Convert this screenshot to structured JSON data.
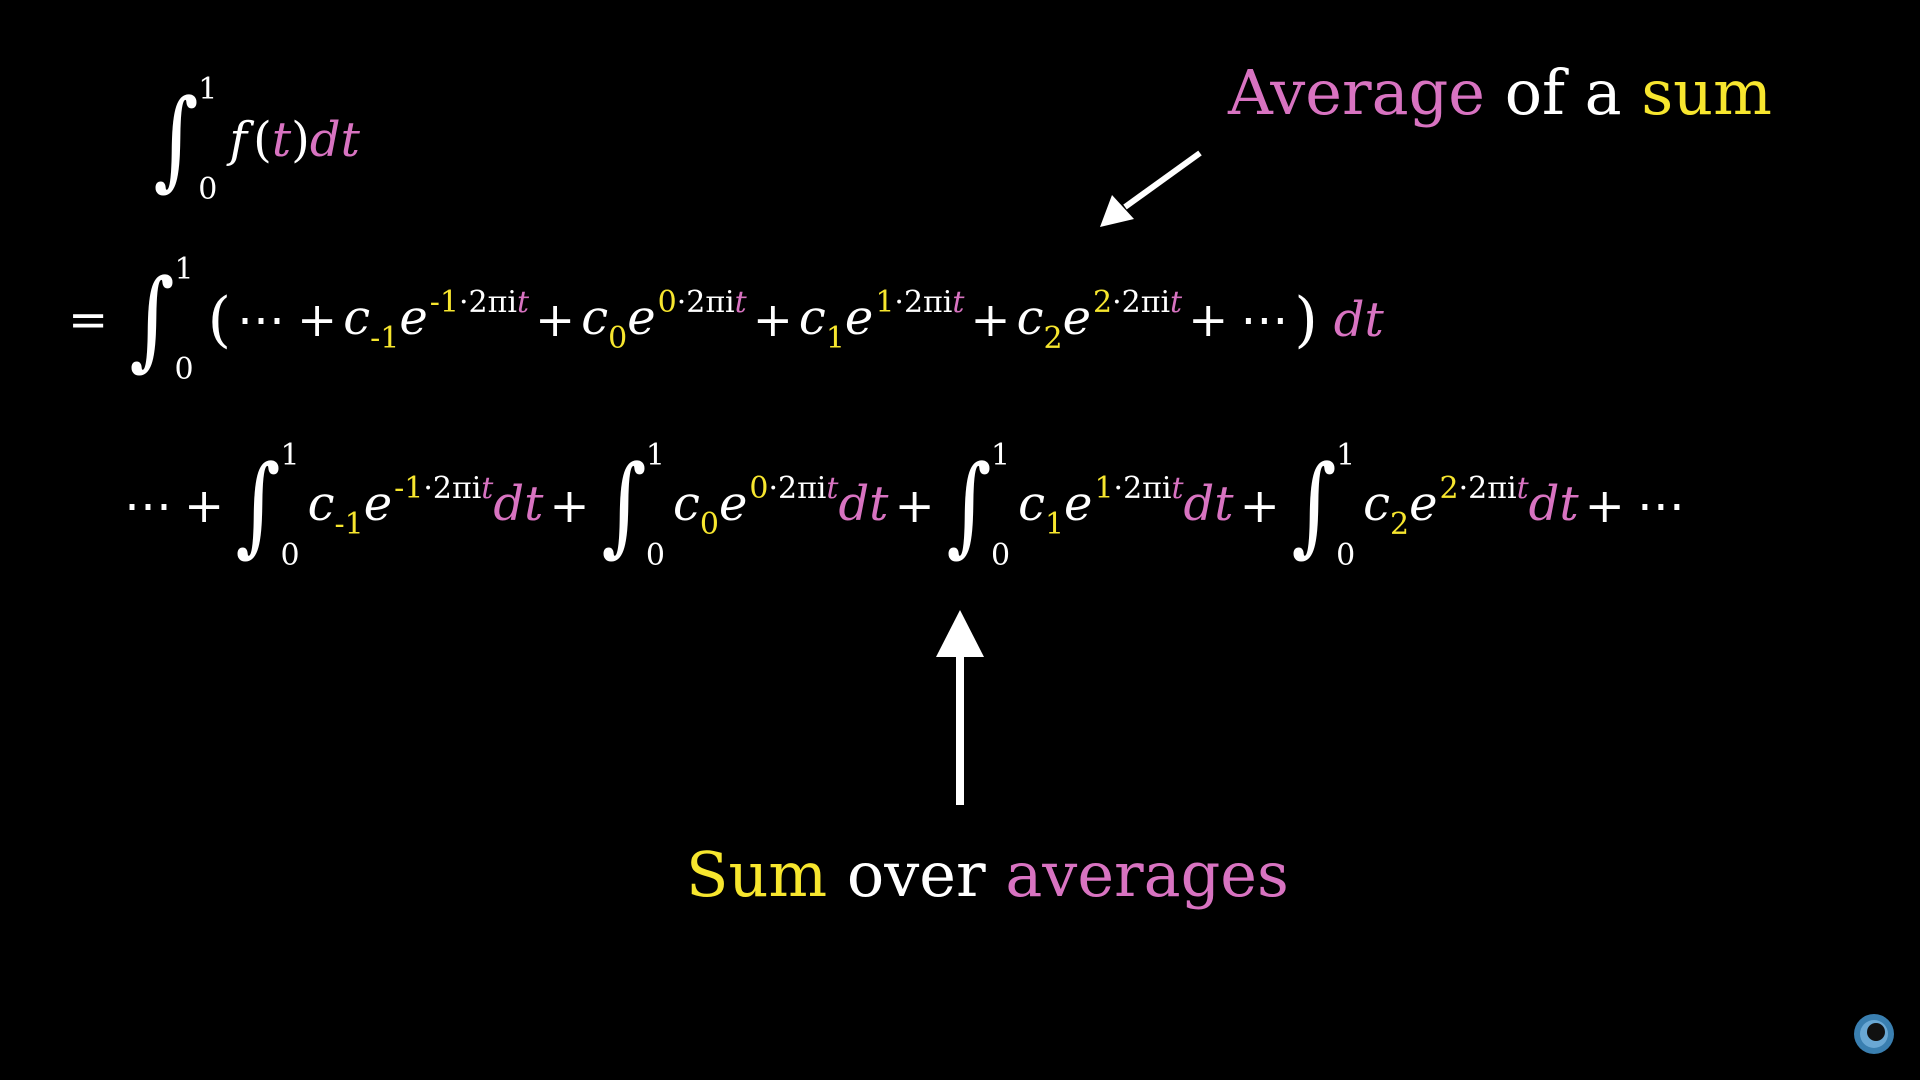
{
  "annotations": {
    "top": {
      "word1": "Average",
      "word2": "of a",
      "word3": "sum"
    },
    "bottom": {
      "word1": "Sum",
      "word2": "over",
      "word3": "averages"
    }
  },
  "math": {
    "integral_upper": "1",
    "integral_lower": "0",
    "f_of_t": {
      "f": "f",
      "open": "(",
      "t": "t",
      "close": ")",
      "dt": "dt"
    },
    "eq": "=",
    "plus": "+",
    "dots": "⋯",
    "open_paren": "(",
    "close_paren": ")",
    "c": "c",
    "e": "e",
    "dt": "dt",
    "exponent_tail": "·2πi",
    "exponent_t": "t",
    "terms": [
      {
        "n": "-1"
      },
      {
        "n": "0"
      },
      {
        "n": "1"
      },
      {
        "n": "2"
      }
    ]
  },
  "colors": {
    "background": "#000000",
    "white": "#ffffff",
    "yellow": "#f7e62e",
    "pink": "#d873c1"
  },
  "icons": {
    "corner": "eye-logo-icon"
  }
}
